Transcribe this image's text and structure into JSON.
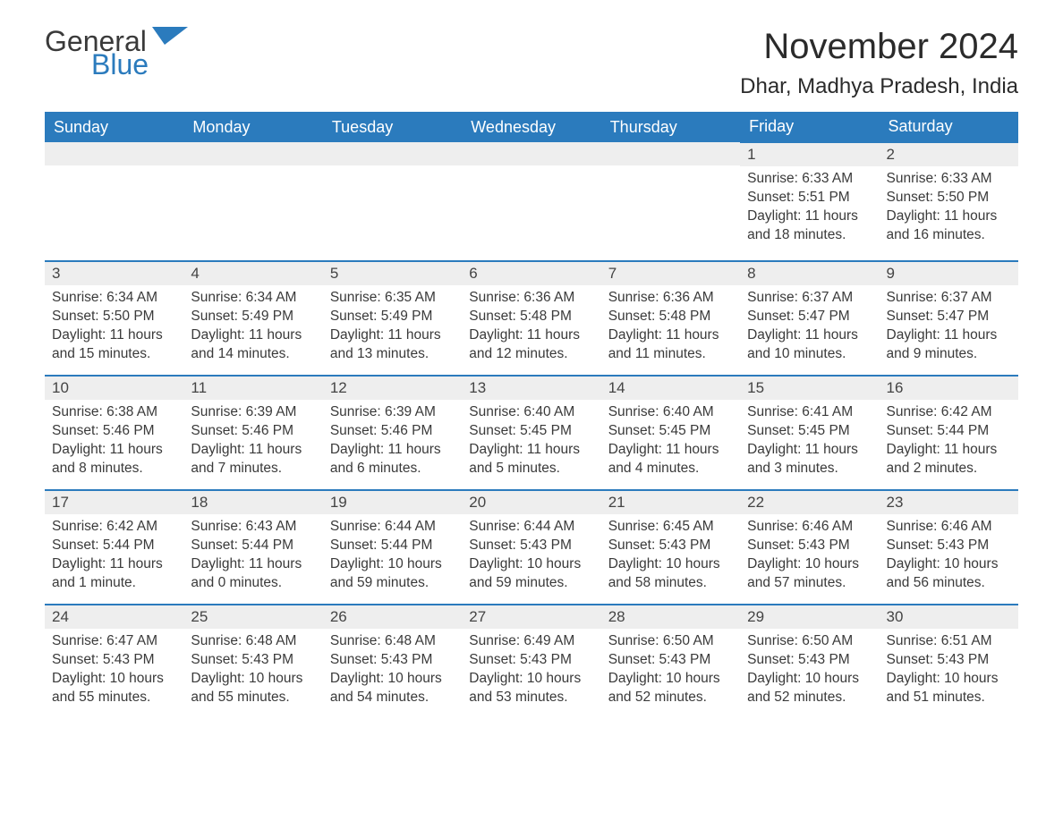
{
  "brand": {
    "part1": "General",
    "part2": "Blue",
    "logo_color": "#2b7bbd",
    "text_color": "#3a3a3a"
  },
  "title": "November 2024",
  "location": "Dhar, Madhya Pradesh, India",
  "colors": {
    "header_bg": "#2b7bbd",
    "header_text": "#ffffff",
    "daynum_bg": "#eeeeee",
    "rule": "#2b7bbd",
    "body_text": "#3a3a3a"
  },
  "weekdays": [
    "Sunday",
    "Monday",
    "Tuesday",
    "Wednesday",
    "Thursday",
    "Friday",
    "Saturday"
  ],
  "weeks": [
    [
      null,
      null,
      null,
      null,
      null,
      {
        "n": "1",
        "sunrise": "Sunrise: 6:33 AM",
        "sunset": "Sunset: 5:51 PM",
        "daylight": "Daylight: 11 hours and 18 minutes."
      },
      {
        "n": "2",
        "sunrise": "Sunrise: 6:33 AM",
        "sunset": "Sunset: 5:50 PM",
        "daylight": "Daylight: 11 hours and 16 minutes."
      }
    ],
    [
      {
        "n": "3",
        "sunrise": "Sunrise: 6:34 AM",
        "sunset": "Sunset: 5:50 PM",
        "daylight": "Daylight: 11 hours and 15 minutes."
      },
      {
        "n": "4",
        "sunrise": "Sunrise: 6:34 AM",
        "sunset": "Sunset: 5:49 PM",
        "daylight": "Daylight: 11 hours and 14 minutes."
      },
      {
        "n": "5",
        "sunrise": "Sunrise: 6:35 AM",
        "sunset": "Sunset: 5:49 PM",
        "daylight": "Daylight: 11 hours and 13 minutes."
      },
      {
        "n": "6",
        "sunrise": "Sunrise: 6:36 AM",
        "sunset": "Sunset: 5:48 PM",
        "daylight": "Daylight: 11 hours and 12 minutes."
      },
      {
        "n": "7",
        "sunrise": "Sunrise: 6:36 AM",
        "sunset": "Sunset: 5:48 PM",
        "daylight": "Daylight: 11 hours and 11 minutes."
      },
      {
        "n": "8",
        "sunrise": "Sunrise: 6:37 AM",
        "sunset": "Sunset: 5:47 PM",
        "daylight": "Daylight: 11 hours and 10 minutes."
      },
      {
        "n": "9",
        "sunrise": "Sunrise: 6:37 AM",
        "sunset": "Sunset: 5:47 PM",
        "daylight": "Daylight: 11 hours and 9 minutes."
      }
    ],
    [
      {
        "n": "10",
        "sunrise": "Sunrise: 6:38 AM",
        "sunset": "Sunset: 5:46 PM",
        "daylight": "Daylight: 11 hours and 8 minutes."
      },
      {
        "n": "11",
        "sunrise": "Sunrise: 6:39 AM",
        "sunset": "Sunset: 5:46 PM",
        "daylight": "Daylight: 11 hours and 7 minutes."
      },
      {
        "n": "12",
        "sunrise": "Sunrise: 6:39 AM",
        "sunset": "Sunset: 5:46 PM",
        "daylight": "Daylight: 11 hours and 6 minutes."
      },
      {
        "n": "13",
        "sunrise": "Sunrise: 6:40 AM",
        "sunset": "Sunset: 5:45 PM",
        "daylight": "Daylight: 11 hours and 5 minutes."
      },
      {
        "n": "14",
        "sunrise": "Sunrise: 6:40 AM",
        "sunset": "Sunset: 5:45 PM",
        "daylight": "Daylight: 11 hours and 4 minutes."
      },
      {
        "n": "15",
        "sunrise": "Sunrise: 6:41 AM",
        "sunset": "Sunset: 5:45 PM",
        "daylight": "Daylight: 11 hours and 3 minutes."
      },
      {
        "n": "16",
        "sunrise": "Sunrise: 6:42 AM",
        "sunset": "Sunset: 5:44 PM",
        "daylight": "Daylight: 11 hours and 2 minutes."
      }
    ],
    [
      {
        "n": "17",
        "sunrise": "Sunrise: 6:42 AM",
        "sunset": "Sunset: 5:44 PM",
        "daylight": "Daylight: 11 hours and 1 minute."
      },
      {
        "n": "18",
        "sunrise": "Sunrise: 6:43 AM",
        "sunset": "Sunset: 5:44 PM",
        "daylight": "Daylight: 11 hours and 0 minutes."
      },
      {
        "n": "19",
        "sunrise": "Sunrise: 6:44 AM",
        "sunset": "Sunset: 5:44 PM",
        "daylight": "Daylight: 10 hours and 59 minutes."
      },
      {
        "n": "20",
        "sunrise": "Sunrise: 6:44 AM",
        "sunset": "Sunset: 5:43 PM",
        "daylight": "Daylight: 10 hours and 59 minutes."
      },
      {
        "n": "21",
        "sunrise": "Sunrise: 6:45 AM",
        "sunset": "Sunset: 5:43 PM",
        "daylight": "Daylight: 10 hours and 58 minutes."
      },
      {
        "n": "22",
        "sunrise": "Sunrise: 6:46 AM",
        "sunset": "Sunset: 5:43 PM",
        "daylight": "Daylight: 10 hours and 57 minutes."
      },
      {
        "n": "23",
        "sunrise": "Sunrise: 6:46 AM",
        "sunset": "Sunset: 5:43 PM",
        "daylight": "Daylight: 10 hours and 56 minutes."
      }
    ],
    [
      {
        "n": "24",
        "sunrise": "Sunrise: 6:47 AM",
        "sunset": "Sunset: 5:43 PM",
        "daylight": "Daylight: 10 hours and 55 minutes."
      },
      {
        "n": "25",
        "sunrise": "Sunrise: 6:48 AM",
        "sunset": "Sunset: 5:43 PM",
        "daylight": "Daylight: 10 hours and 55 minutes."
      },
      {
        "n": "26",
        "sunrise": "Sunrise: 6:48 AM",
        "sunset": "Sunset: 5:43 PM",
        "daylight": "Daylight: 10 hours and 54 minutes."
      },
      {
        "n": "27",
        "sunrise": "Sunrise: 6:49 AM",
        "sunset": "Sunset: 5:43 PM",
        "daylight": "Daylight: 10 hours and 53 minutes."
      },
      {
        "n": "28",
        "sunrise": "Sunrise: 6:50 AM",
        "sunset": "Sunset: 5:43 PM",
        "daylight": "Daylight: 10 hours and 52 minutes."
      },
      {
        "n": "29",
        "sunrise": "Sunrise: 6:50 AM",
        "sunset": "Sunset: 5:43 PM",
        "daylight": "Daylight: 10 hours and 52 minutes."
      },
      {
        "n": "30",
        "sunrise": "Sunrise: 6:51 AM",
        "sunset": "Sunset: 5:43 PM",
        "daylight": "Daylight: 10 hours and 51 minutes."
      }
    ]
  ]
}
